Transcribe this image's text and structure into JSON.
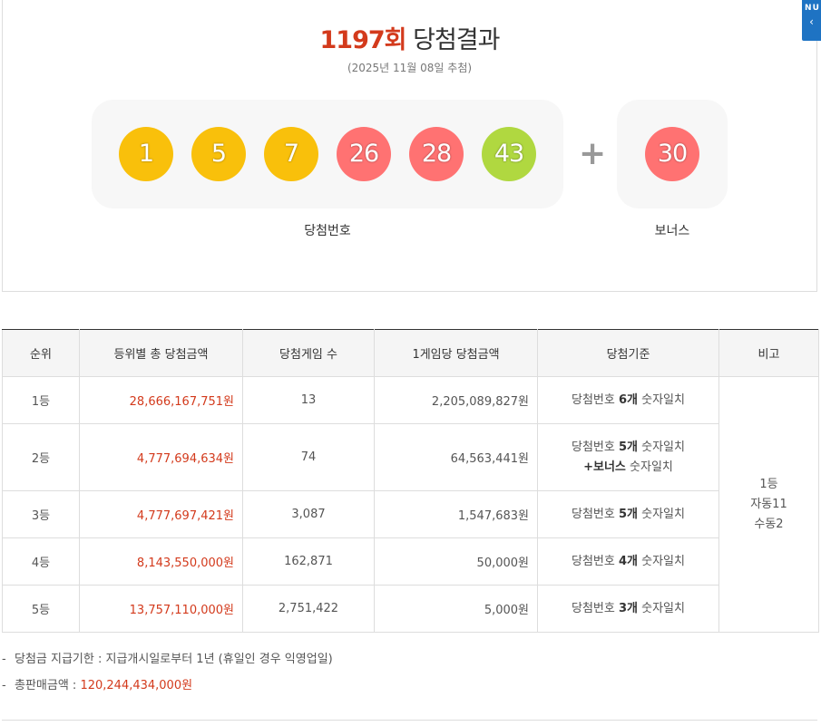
{
  "header": {
    "round_label": "1197회",
    "title_rest": "당첨결과",
    "draw_date": "(2025년 11월 08일 추첨)"
  },
  "numbers": {
    "main": [
      {
        "value": "1",
        "color": "#f9c00b"
      },
      {
        "value": "5",
        "color": "#f9c00b"
      },
      {
        "value": "7",
        "color": "#f9c00b"
      },
      {
        "value": "26",
        "color": "#ff7272"
      },
      {
        "value": "28",
        "color": "#ff7272"
      },
      {
        "value": "43",
        "color": "#b0d840"
      }
    ],
    "plus": "+",
    "bonus": {
      "value": "30",
      "color": "#ff7272"
    },
    "main_label": "당첨번호",
    "bonus_label": "보너스"
  },
  "nav_button": {
    "text_top": "N U",
    "arrow": "‹"
  },
  "table": {
    "headers": [
      "순위",
      "등위별 총 당첨금액",
      "당첨게임 수",
      "1게임당 당첨금액",
      "당첨기준",
      "비고"
    ],
    "rows": [
      {
        "rank": "1등",
        "total": "28,666,167,751원",
        "games": "13",
        "per_game": "2,205,089,827원",
        "crit_pre": "당첨번호 ",
        "crit_bold": "6개",
        "crit_post": " 숫자일치"
      },
      {
        "rank": "2등",
        "total": "4,777,694,634원",
        "games": "74",
        "per_game": "64,563,441원",
        "crit_pre": "당첨번호 ",
        "crit_bold": "5개",
        "crit_post": " 숫자일치",
        "crit_line2_bold": "+보너스",
        "crit_line2_post": " 숫자일치"
      },
      {
        "rank": "3등",
        "total": "4,777,697,421원",
        "games": "3,087",
        "per_game": "1,547,683원",
        "crit_pre": "당첨번호 ",
        "crit_bold": "5개",
        "crit_post": " 숫자일치"
      },
      {
        "rank": "4등",
        "total": "8,143,550,000원",
        "games": "162,871",
        "per_game": "50,000원",
        "crit_pre": "당첨번호 ",
        "crit_bold": "4개",
        "crit_post": " 숫자일치"
      },
      {
        "rank": "5등",
        "total": "13,757,110,000원",
        "games": "2,751,422",
        "per_game": "5,000원",
        "crit_pre": "당첨번호 ",
        "crit_bold": "3개",
        "crit_post": " 숫자일치"
      }
    ],
    "remark": [
      "1등",
      "자동11",
      "수동2"
    ]
  },
  "notes": {
    "dash": "-",
    "deadline": "당첨금 지급기한 : 지급개시일로부터 1년 (휴일인 경우 익영업일)",
    "sales_label": "총판매금액 : ",
    "sales_value": "120,244,434,000원"
  },
  "colors": {
    "accent_red": "#d33a1c",
    "nav_blue": "#1e73c3"
  }
}
